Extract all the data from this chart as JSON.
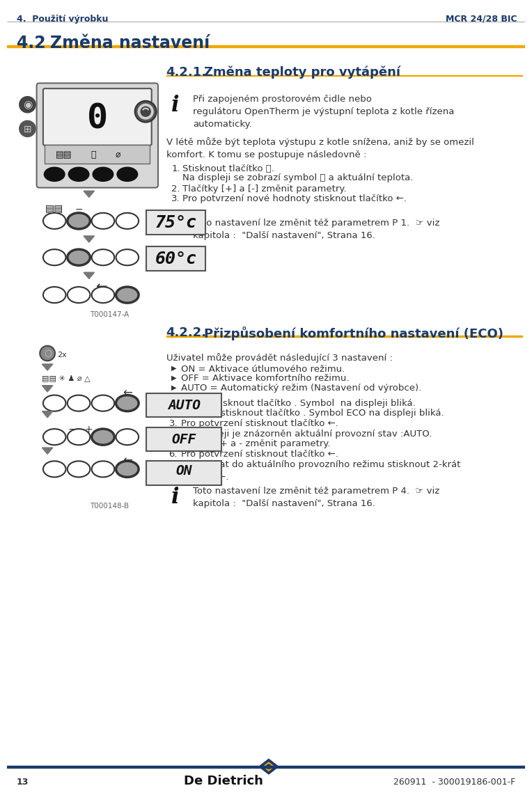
{
  "bg_color": "#ffffff",
  "header_text_left": "4.  Použití výrobku",
  "header_text_right": "MCR 24/28 BIC",
  "header_color": "#1a3a6b",
  "header_fontsize": 9,
  "gold_line_color": "#f0a800",
  "dark_line_color": "#1a3a6b",
  "section_title_num": "4.2",
  "section_title_text": "Změna nastavení",
  "section_title_color": "#1a3a6b",
  "section_title_fontsize": 17,
  "subsection_421_label": "4.2.1.",
  "subsection_421_title": "Změna teploty pro vytápění",
  "subsection_422_label": "4.2.2.",
  "subsection_422_title": "Přizpůsobení komfortního nastavení (ECO)",
  "subsection_color": "#1a3a6b",
  "subsection_fontsize": 13,
  "footer_page": "13",
  "footer_doc": "260911  - 300019186-001-F",
  "footer_color": "#333333",
  "footer_fontsize": 9,
  "body_color": "#333333",
  "body_fontsize": 9.5,
  "info421_text": "Při zapojeném prostorovém čidle nebo\nregulátoru OpenTherm je výstupní teplota z kotle řízena\nautomaticky.",
  "body421_para": "V létě může být teplota výstupu z kotle snížena, aniž by se omezil\nkomfort. K tomu se postupuje následovně :",
  "step421_1a": "Stisknout tlačítko ",
  "step421_1b": ".",
  "step421_1c": "Na displeji se zobrazí symbol ",
  "step421_1d": " a aktuální teplota.",
  "step421_2": "Tlačítky [+] a [-] změnit parametry.",
  "step421_3": "Pro potvrzení nové hodnoty stisknout tlačítko ←.",
  "info421b_text": "Toto nastavení lze změnit též parametrem P 1.  ☞ viz\nkapitola :  \"Další nastavení\", Strana 16.",
  "body422_para": "Uživatel může provádět následující 3 nastavení :",
  "bullets422": [
    "ON = Aktivace útlumového režimu.",
    "OFF = Aktivace komfortního režimu.",
    "AUTO = Automatický režim (Nastavení od výrobce)."
  ],
  "steps422": [
    "1-krát stisknout tlačítko . Symbol  na displeji bliká.",
    "Dvakrát stisknout tlačítko . Symbol ECO na displeji bliká.",
    "Pro potvrzení stisknout tlačítko ←.",
    "Na displeji je znázorněn aktuální provozní stav :AUTO.",
    "Tlačítky + a - změnit parametry.",
    "Pro potvrzení stisknout tlačítko ←.",
    "Pro návrat do aktuálního provozního režimu stisknout 2-krát\ntlačítko ←."
  ],
  "info422_text": "Toto nastavení lze změnit též parametrem P 4.  ☞ viz\nkapitola :  \"Další nastavení\", Strana 16.",
  "t000147": "T000147-A",
  "t000148": "T000148-B"
}
